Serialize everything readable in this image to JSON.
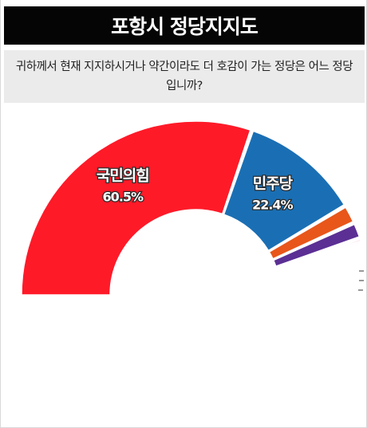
{
  "header": {
    "title": "포항시 정당지지도",
    "question": "귀하께서 현재 지지하시거나 약간이라도 더 호감이 가는 정당은 어느 정당입니까?"
  },
  "chart_data": {
    "type": "pie",
    "style": "half-donut",
    "title": "포항시 정당지지도",
    "slices": [
      {
        "label": "국민의힘",
        "value": 60.5,
        "value_label": "60.5%",
        "color": "#ff1a28",
        "show_label": true
      },
      {
        "label": "민주당",
        "value": 22.4,
        "value_label": "22.4%",
        "color": "#1a6fb4",
        "show_label": true
      },
      {
        "label": "",
        "value": 3.5,
        "value_label": "",
        "color": "#e8561a",
        "show_label": false
      },
      {
        "label": "",
        "value": 3.0,
        "value_label": "",
        "color": "#5b2f94",
        "show_label": false
      },
      {
        "label": "",
        "value": 0.8,
        "value_label": "",
        "color": "#d6206a",
        "show_label": false
      }
    ],
    "total_scale": 100,
    "legend": "none"
  }
}
